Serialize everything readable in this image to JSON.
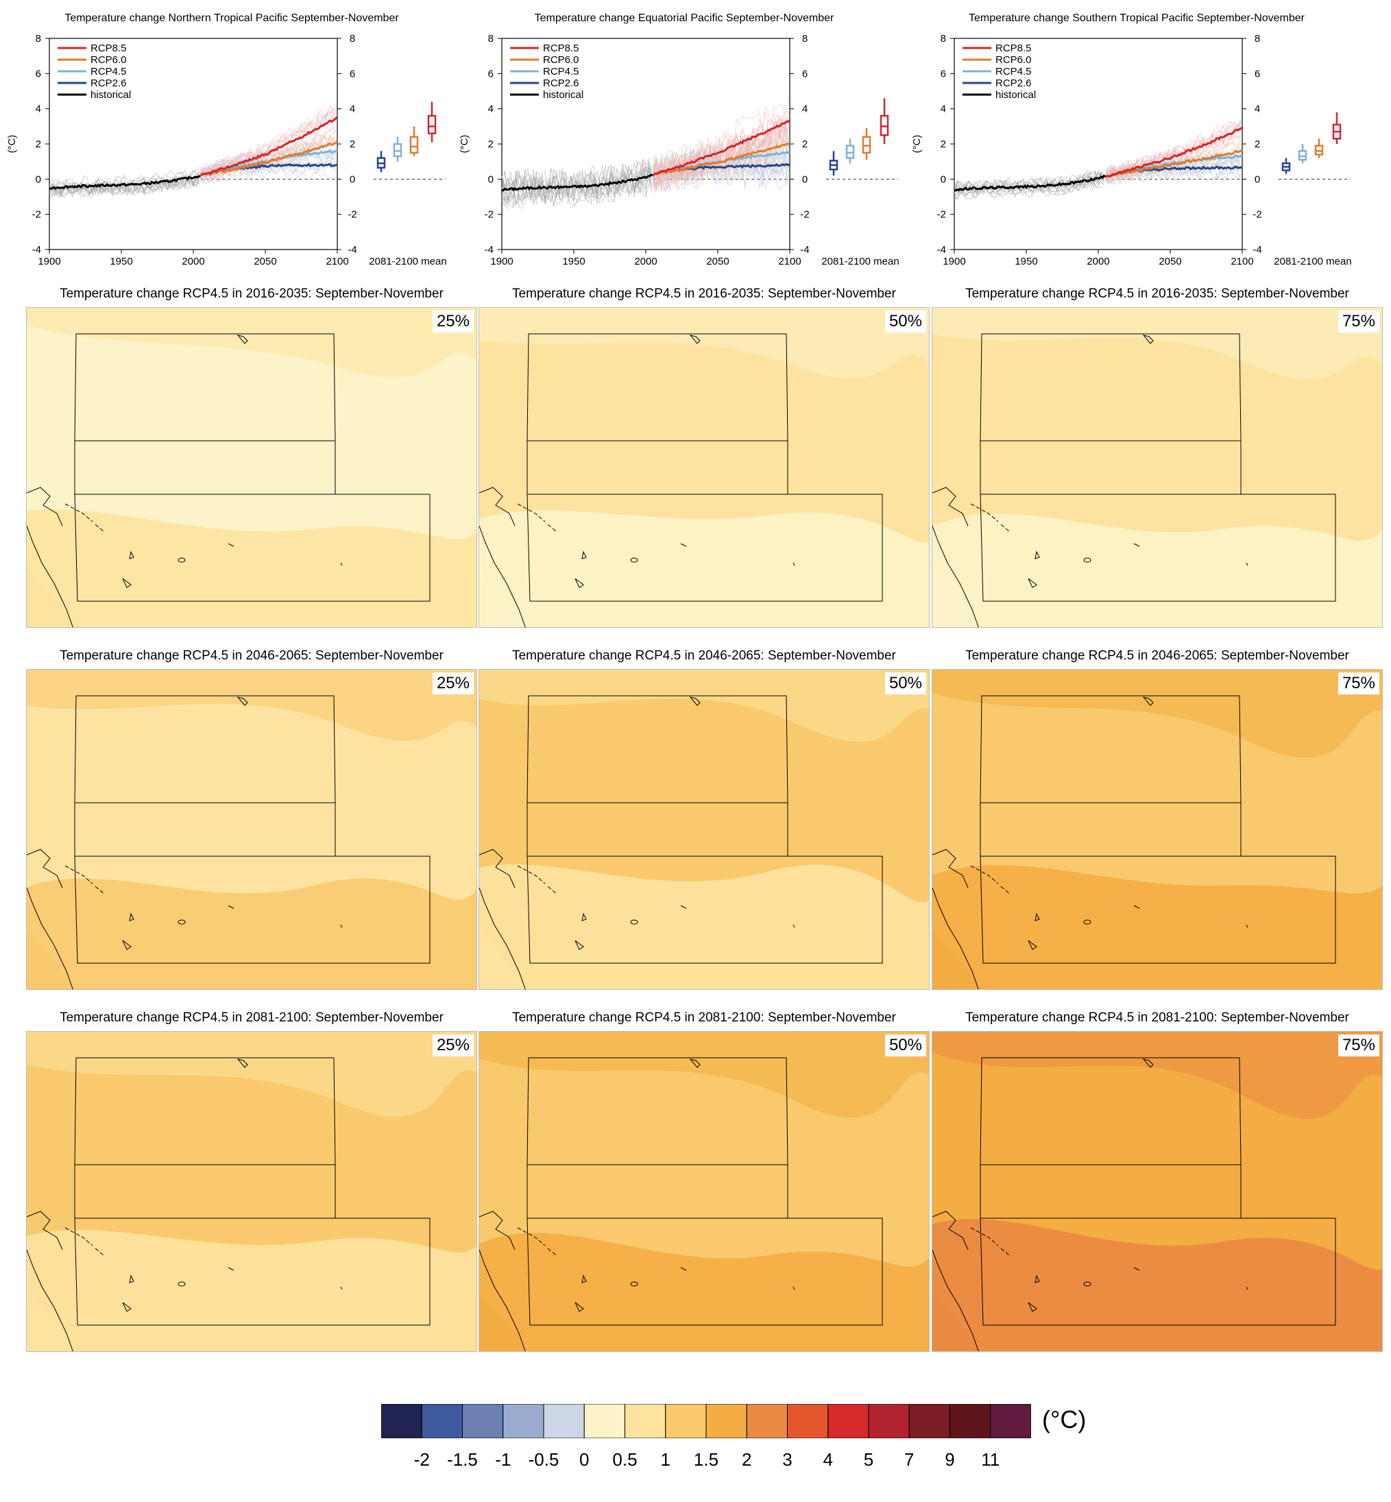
{
  "chart_data": [
    {
      "type": "line",
      "title": "Temperature change Northern Tropical Pacific September-November",
      "ylabel": "(°C)",
      "xlim": [
        1900,
        2100
      ],
      "ylim": [
        -4,
        8
      ],
      "x_ticks": [
        "1900",
        "1950",
        "2000",
        "2050",
        "2100"
      ],
      "y_ticks": [
        "-4",
        "-2",
        "0",
        "2",
        "4",
        "6",
        "8"
      ],
      "boxplot_label": "2081-2100 mean",
      "series": [
        {
          "name": "historical",
          "x": [
            1900,
            1920,
            1940,
            1960,
            1980,
            2000,
            2005
          ],
          "values": [
            -0.5,
            -0.4,
            -0.35,
            -0.3,
            -0.15,
            0.1,
            0.2
          ]
        },
        {
          "name": "RCP2.6",
          "x": [
            2005,
            2025,
            2050,
            2075,
            2100
          ],
          "values": [
            0.2,
            0.55,
            0.75,
            0.8,
            0.8
          ]
        },
        {
          "name": "RCP4.5",
          "x": [
            2005,
            2025,
            2050,
            2075,
            2100
          ],
          "values": [
            0.2,
            0.6,
            1.0,
            1.4,
            1.6
          ]
        },
        {
          "name": "RCP6.0",
          "x": [
            2005,
            2025,
            2050,
            2075,
            2100
          ],
          "values": [
            0.2,
            0.5,
            0.95,
            1.5,
            2.1
          ]
        },
        {
          "name": "RCP8.5",
          "x": [
            2005,
            2025,
            2050,
            2075,
            2100
          ],
          "values": [
            0.2,
            0.7,
            1.4,
            2.4,
            3.5
          ]
        }
      ],
      "boxplots": [
        {
          "name": "RCP2.6",
          "min": 0.4,
          "q1": 0.65,
          "median": 0.9,
          "q3": 1.2,
          "max": 1.6
        },
        {
          "name": "RCP4.5",
          "min": 1.0,
          "q1": 1.3,
          "median": 1.6,
          "q3": 2.0,
          "max": 2.4
        },
        {
          "name": "RCP6.0",
          "min": 1.3,
          "q1": 1.5,
          "median": 1.85,
          "q3": 2.4,
          "max": 3.0
        },
        {
          "name": "RCP8.5",
          "min": 2.1,
          "q1": 2.6,
          "median": 3.0,
          "q3": 3.6,
          "max": 4.4
        }
      ]
    },
    {
      "type": "line",
      "title": "Temperature change Equatorial Pacific September-November",
      "ylabel": "(°C)",
      "xlim": [
        1900,
        2100
      ],
      "ylim": [
        -4,
        8
      ],
      "x_ticks": [
        "1900",
        "1950",
        "2000",
        "2050",
        "2100"
      ],
      "y_ticks": [
        "-4",
        "-2",
        "0",
        "2",
        "4",
        "6",
        "8"
      ],
      "boxplot_label": "2081-2100 mean",
      "series": [
        {
          "name": "historical",
          "x": [
            1900,
            1920,
            1940,
            1960,
            1980,
            2000,
            2005
          ],
          "values": [
            -0.6,
            -0.5,
            -0.45,
            -0.4,
            -0.2,
            0.1,
            0.25
          ]
        },
        {
          "name": "RCP2.6",
          "x": [
            2005,
            2025,
            2050,
            2075,
            2100
          ],
          "values": [
            0.25,
            0.55,
            0.7,
            0.75,
            0.8
          ]
        },
        {
          "name": "RCP4.5",
          "x": [
            2005,
            2025,
            2050,
            2075,
            2100
          ],
          "values": [
            0.25,
            0.6,
            1.0,
            1.3,
            1.5
          ]
        },
        {
          "name": "RCP6.0",
          "x": [
            2005,
            2025,
            2050,
            2075,
            2100
          ],
          "values": [
            0.25,
            0.55,
            0.95,
            1.5,
            2.0
          ]
        },
        {
          "name": "RCP8.5",
          "x": [
            2005,
            2025,
            2050,
            2075,
            2100
          ],
          "values": [
            0.25,
            0.75,
            1.5,
            2.4,
            3.3
          ]
        }
      ],
      "boxplots": [
        {
          "name": "RCP2.6",
          "min": 0.2,
          "q1": 0.55,
          "median": 0.8,
          "q3": 1.05,
          "max": 1.6
        },
        {
          "name": "RCP4.5",
          "min": 0.9,
          "q1": 1.2,
          "median": 1.5,
          "q3": 1.9,
          "max": 2.3
        },
        {
          "name": "RCP6.0",
          "min": 1.1,
          "q1": 1.5,
          "median": 1.9,
          "q3": 2.4,
          "max": 2.9
        },
        {
          "name": "RCP8.5",
          "min": 2.0,
          "q1": 2.5,
          "median": 3.0,
          "q3": 3.6,
          "max": 4.6
        }
      ]
    },
    {
      "type": "line",
      "title": "Temperature change Southern Tropical Pacific September-November",
      "ylabel": "(°C)",
      "xlim": [
        1900,
        2100
      ],
      "ylim": [
        -4,
        8
      ],
      "x_ticks": [
        "1900",
        "1950",
        "2000",
        "2050",
        "2100"
      ],
      "y_ticks": [
        "-4",
        "-2",
        "0",
        "2",
        "4",
        "6",
        "8"
      ],
      "boxplot_label": "2081-2100 mean",
      "series": [
        {
          "name": "historical",
          "x": [
            1900,
            1920,
            1940,
            1960,
            1980,
            2000,
            2005
          ],
          "values": [
            -0.6,
            -0.5,
            -0.45,
            -0.4,
            -0.25,
            0.05,
            0.15
          ]
        },
        {
          "name": "RCP2.6",
          "x": [
            2005,
            2025,
            2050,
            2075,
            2100
          ],
          "values": [
            0.15,
            0.45,
            0.6,
            0.65,
            0.65
          ]
        },
        {
          "name": "RCP4.5",
          "x": [
            2005,
            2025,
            2050,
            2075,
            2100
          ],
          "values": [
            0.15,
            0.5,
            0.9,
            1.15,
            1.3
          ]
        },
        {
          "name": "RCP6.0",
          "x": [
            2005,
            2025,
            2050,
            2075,
            2100
          ],
          "values": [
            0.15,
            0.45,
            0.8,
            1.2,
            1.6
          ]
        },
        {
          "name": "RCP8.5",
          "x": [
            2005,
            2025,
            2050,
            2075,
            2100
          ],
          "values": [
            0.15,
            0.6,
            1.2,
            2.0,
            2.9
          ]
        }
      ],
      "boxplots": [
        {
          "name": "RCP2.6",
          "min": 0.3,
          "q1": 0.5,
          "median": 0.7,
          "q3": 0.9,
          "max": 1.2
        },
        {
          "name": "RCP4.5",
          "min": 0.9,
          "q1": 1.1,
          "median": 1.3,
          "q3": 1.6,
          "max": 2.0
        },
        {
          "name": "RCP6.0",
          "min": 1.2,
          "q1": 1.4,
          "median": 1.6,
          "q3": 1.9,
          "max": 2.3
        },
        {
          "name": "RCP8.5",
          "min": 2.0,
          "q1": 2.3,
          "median": 2.7,
          "q3": 3.1,
          "max": 3.8
        }
      ]
    }
  ],
  "series_colors": {
    "RCP8.5": "#d0262d",
    "RCP6.0": "#e07b2e",
    "RCP4.5": "#7fb2d4",
    "RCP2.6": "#26448c",
    "historical": "#000000"
  },
  "legend": [
    "RCP8.5",
    "RCP6.0",
    "RCP4.5",
    "RCP2.6",
    "historical"
  ],
  "maps": {
    "rows": [
      {
        "title": "Temperature change RCP4.5 in 2016-2035: September-November",
        "panels": [
          {
            "percentile": "25%",
            "base": "#fdf3c8",
            "patch": "#fde39f"
          },
          {
            "percentile": "50%",
            "base": "#fde39f",
            "patch": "#fdf3c8"
          },
          {
            "percentile": "75%",
            "base": "#fde39f",
            "patch": "#fdf3c8"
          }
        ]
      },
      {
        "title": "Temperature change RCP4.5 in 2046-2065: September-November",
        "panels": [
          {
            "percentile": "25%",
            "base": "#fde39f",
            "patch": "#f9c96e"
          },
          {
            "percentile": "50%",
            "base": "#f9c96e",
            "patch": "#fde39f"
          },
          {
            "percentile": "75%",
            "base": "#f9c96e",
            "patch": "#f4ad42"
          }
        ]
      },
      {
        "title": "Temperature change RCP4.5 in 2081-2100: September-November",
        "panels": [
          {
            "percentile": "25%",
            "base": "#f9c96e",
            "patch": "#fde39f"
          },
          {
            "percentile": "50%",
            "base": "#f9c96e",
            "patch": "#f4ad42"
          },
          {
            "percentile": "75%",
            "base": "#f4ad42",
            "patch": "#e98a43"
          }
        ]
      }
    ]
  },
  "colorbar": {
    "unit": "(°C)",
    "colors": [
      "#1f2452",
      "#3e5a9e",
      "#6b7fb3",
      "#9aabcf",
      "#cdd6e4",
      "#fdf3c8",
      "#fde39f",
      "#f9c96e",
      "#f4ad42",
      "#e98a43",
      "#e4562c",
      "#d62a2a",
      "#b22330",
      "#7c1c24",
      "#5c161b",
      "#5e1b3e"
    ],
    "labels": [
      "-2",
      "-1.5",
      "-1",
      "-0.5",
      "0",
      "0.5",
      "1",
      "1.5",
      "2",
      "3",
      "4",
      "5",
      "7",
      "9",
      "11"
    ]
  }
}
